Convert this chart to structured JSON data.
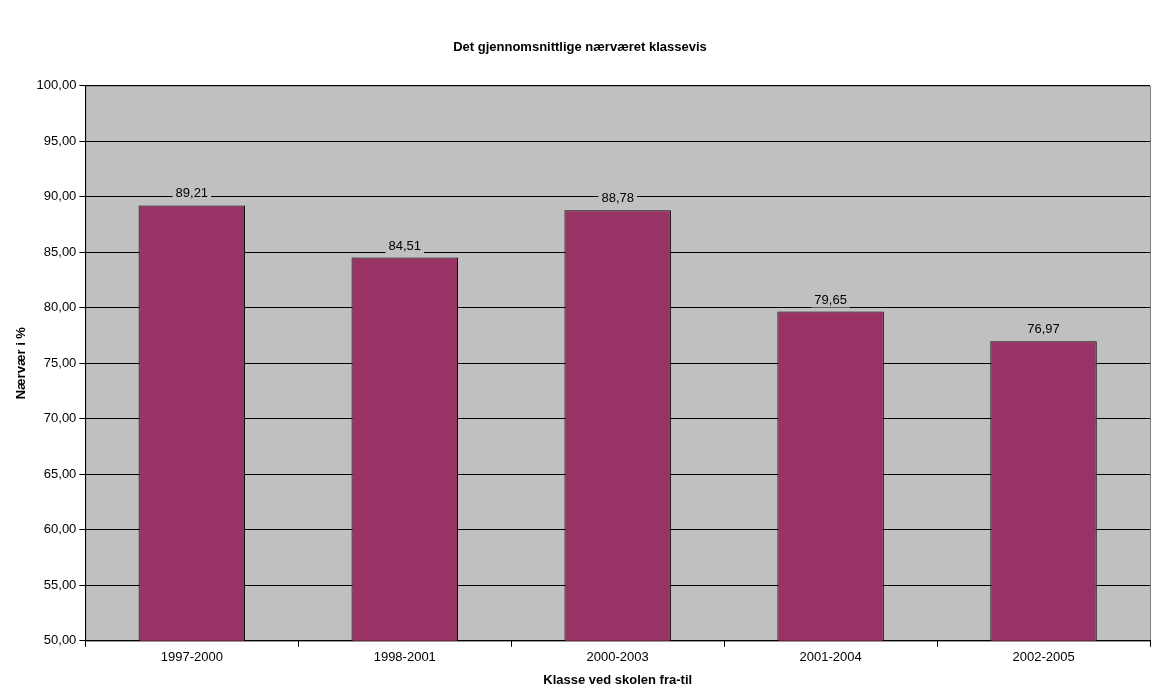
{
  "chart_data": {
    "type": "bar",
    "title": "Det gjennomsnittlige nærværet klassevis",
    "xlabel": "Klasse ved skolen fra-til",
    "ylabel": "Nærvær i %",
    "categories": [
      "1997-2000",
      "1998-2001",
      "2000-2003",
      "2001-2004",
      "2002-2005"
    ],
    "values": [
      89.21,
      84.51,
      88.78,
      79.65,
      76.97
    ],
    "value_labels": [
      "89,21",
      "84,51",
      "88,78",
      "79,65",
      "76,97"
    ],
    "color": "#993366",
    "ylim": [
      50,
      100
    ],
    "yticks": [
      {
        "value": 50,
        "label": "50,00"
      },
      {
        "value": 55,
        "label": "55,00"
      },
      {
        "value": 60,
        "label": "60,00"
      },
      {
        "value": 65,
        "label": "65,00"
      },
      {
        "value": 70,
        "label": "70,00"
      },
      {
        "value": 75,
        "label": "75,00"
      },
      {
        "value": 80,
        "label": "80,00"
      },
      {
        "value": 85,
        "label": "85,00"
      },
      {
        "value": 90,
        "label": "90,00"
      },
      {
        "value": 95,
        "label": "95,00"
      },
      {
        "value": 100,
        "label": "100,00"
      }
    ],
    "grid": "y",
    "legend": false
  }
}
